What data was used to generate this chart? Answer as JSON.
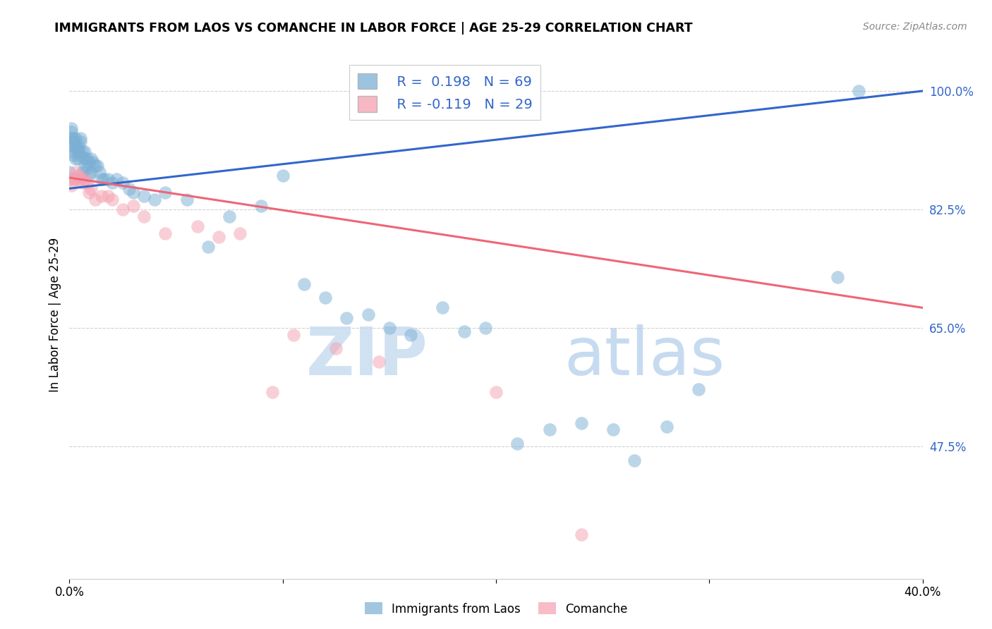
{
  "title": "IMMIGRANTS FROM LAOS VS COMANCHE IN LABOR FORCE | AGE 25-29 CORRELATION CHART",
  "source": "Source: ZipAtlas.com",
  "ylabel": "In Labor Force | Age 25-29",
  "xmin": 0.0,
  "xmax": 0.4,
  "ymin": 0.28,
  "ymax": 1.06,
  "yticks": [
    0.475,
    0.65,
    0.825,
    1.0
  ],
  "ytick_labels": [
    "47.5%",
    "65.0%",
    "82.5%",
    "100.0%"
  ],
  "xticks": [
    0.0,
    0.1,
    0.2,
    0.3,
    0.4
  ],
  "xtick_labels": [
    "0.0%",
    "",
    "",
    "",
    "40.0%"
  ],
  "legend_blue_r": "R =  0.198",
  "legend_blue_n": "N = 69",
  "legend_pink_r": "R = -0.119",
  "legend_pink_n": "N = 29",
  "blue_color": "#7BAFD4",
  "pink_color": "#F4A0B0",
  "blue_line_color": "#3366CC",
  "pink_line_color": "#EE6677",
  "watermark_color": "#C8DCF0",
  "blue_x": [
    0.0,
    0.001,
    0.001,
    0.001,
    0.001,
    0.002,
    0.002,
    0.002,
    0.002,
    0.003,
    0.003,
    0.003,
    0.003,
    0.004,
    0.004,
    0.004,
    0.004,
    0.005,
    0.005,
    0.005,
    0.006,
    0.006,
    0.007,
    0.007,
    0.007,
    0.008,
    0.008,
    0.009,
    0.009,
    0.01,
    0.01,
    0.011,
    0.012,
    0.013,
    0.014,
    0.015,
    0.016,
    0.018,
    0.02,
    0.022,
    0.025,
    0.028,
    0.03,
    0.035,
    0.04,
    0.045,
    0.055,
    0.065,
    0.075,
    0.09,
    0.1,
    0.11,
    0.12,
    0.13,
    0.14,
    0.15,
    0.16,
    0.175,
    0.185,
    0.195,
    0.21,
    0.225,
    0.24,
    0.255,
    0.265,
    0.28,
    0.295,
    0.36,
    0.37
  ],
  "blue_y": [
    0.88,
    0.945,
    0.94,
    0.93,
    0.92,
    0.93,
    0.925,
    0.91,
    0.905,
    0.93,
    0.92,
    0.915,
    0.9,
    0.92,
    0.915,
    0.91,
    0.9,
    0.93,
    0.925,
    0.905,
    0.91,
    0.88,
    0.91,
    0.9,
    0.89,
    0.9,
    0.885,
    0.895,
    0.875,
    0.9,
    0.88,
    0.895,
    0.89,
    0.89,
    0.88,
    0.87,
    0.87,
    0.87,
    0.865,
    0.87,
    0.865,
    0.855,
    0.85,
    0.845,
    0.84,
    0.85,
    0.84,
    0.77,
    0.815,
    0.83,
    0.875,
    0.715,
    0.695,
    0.665,
    0.67,
    0.65,
    0.64,
    0.68,
    0.645,
    0.65,
    0.48,
    0.5,
    0.51,
    0.5,
    0.455,
    0.505,
    0.56,
    0.725,
    1.0
  ],
  "pink_x": [
    0.0,
    0.001,
    0.002,
    0.003,
    0.003,
    0.004,
    0.005,
    0.006,
    0.007,
    0.008,
    0.009,
    0.01,
    0.012,
    0.015,
    0.018,
    0.02,
    0.025,
    0.03,
    0.035,
    0.045,
    0.06,
    0.07,
    0.08,
    0.095,
    0.105,
    0.125,
    0.145,
    0.2,
    0.24
  ],
  "pink_y": [
    0.87,
    0.86,
    0.87,
    0.88,
    0.87,
    0.875,
    0.87,
    0.865,
    0.87,
    0.865,
    0.85,
    0.855,
    0.84,
    0.845,
    0.845,
    0.84,
    0.825,
    0.83,
    0.815,
    0.79,
    0.8,
    0.785,
    0.79,
    0.555,
    0.64,
    0.62,
    0.6,
    0.555,
    0.345
  ],
  "blue_line_x0": 0.0,
  "blue_line_x1": 0.4,
  "blue_line_y0": 0.856,
  "blue_line_y1": 1.0,
  "pink_line_x0": 0.0,
  "pink_line_x1": 0.4,
  "pink_line_y0": 0.872,
  "pink_line_y1": 0.68
}
